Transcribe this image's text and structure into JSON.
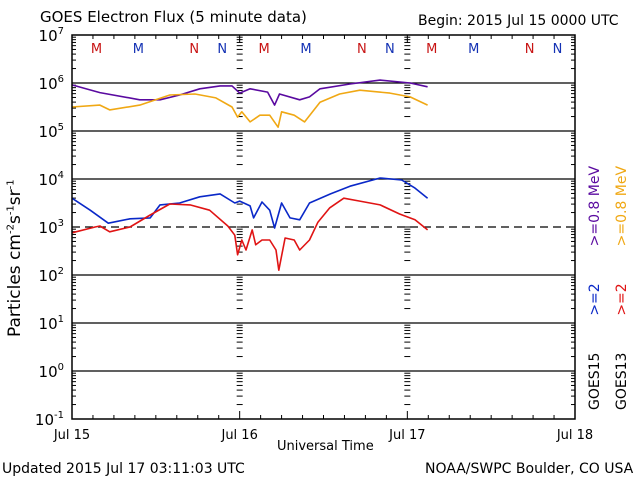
{
  "header": {
    "title": "GOES Electron Flux (5 minute data)",
    "begin": "Begin: 2015 Jul 15 0000 UTC"
  },
  "footer": {
    "updated": "Updated 2015 Jul 17 03:11:03 UTC",
    "credit": "NOAA/SWPC Boulder, CO USA"
  },
  "legend": {
    "goes15_label": "GOES15",
    "goes13_label": "GOES13",
    "goes15_ge2": ">=2",
    "goes13_ge2": ">=2",
    "goes15_ge08": ">=0.8  MeV",
    "goes13_ge08": ">=0.8  MeV"
  },
  "colors": {
    "goes15_ge08": "#5a0aa0",
    "goes13_ge08": "#f0a814",
    "goes15_ge2": "#0a28c8",
    "goes13_ge2": "#e01414",
    "marker_red": "#c81414",
    "marker_blue": "#1432b4"
  },
  "chart_data": {
    "type": "line",
    "title": "GOES Electron Flux (5 minute data)",
    "xlabel": "Universal Time",
    "ylabel": "Particles cm^-2 s^-1 sr^-1",
    "yscale": "log",
    "ylim_log10": [
      -1,
      7
    ],
    "xlim_hours": [
      0,
      72
    ],
    "x_unit": "hours since 2015 Jul 15 00:00 UTC",
    "x_ticks": [
      {
        "hour": 0,
        "label": "Jul 15"
      },
      {
        "hour": 24,
        "label": "Jul 16"
      },
      {
        "hour": 48,
        "label": "Jul 17"
      },
      {
        "hour": 72,
        "label": "Jul 18"
      }
    ],
    "y_ticks": [
      {
        "exp": 7,
        "label": "10",
        "sup": "7"
      },
      {
        "exp": 6,
        "label": "10",
        "sup": "6"
      },
      {
        "exp": 5,
        "label": "10",
        "sup": "5"
      },
      {
        "exp": 4,
        "label": "10",
        "sup": "4"
      },
      {
        "exp": 3,
        "label": "10",
        "sup": "3"
      },
      {
        "exp": 2,
        "label": "10",
        "sup": "2"
      },
      {
        "exp": 1,
        "label": "10",
        "sup": "1"
      },
      {
        "exp": 0,
        "label": "10",
        "sup": "0"
      },
      {
        "exp": -1,
        "label": "10",
        "sup": "-1"
      }
    ],
    "gridlines_log10": [
      6,
      5,
      4,
      2,
      1,
      0
    ],
    "threshold_log10": 3,
    "threshold_style": "dashed",
    "noon_midnight_markers": [
      {
        "hour": 3.5,
        "label": "M",
        "sat": "GOES13"
      },
      {
        "hour": 9.5,
        "label": "M",
        "sat": "GOES15"
      },
      {
        "hour": 17.5,
        "label": "N",
        "sat": "GOES13"
      },
      {
        "hour": 21.5,
        "label": "N",
        "sat": "GOES15"
      },
      {
        "hour": 27.5,
        "label": "M",
        "sat": "GOES13"
      },
      {
        "hour": 33.5,
        "label": "M",
        "sat": "GOES15"
      },
      {
        "hour": 41.5,
        "label": "N",
        "sat": "GOES13"
      },
      {
        "hour": 45.5,
        "label": "N",
        "sat": "GOES15"
      },
      {
        "hour": 51.5,
        "label": "M",
        "sat": "GOES13"
      },
      {
        "hour": 57.5,
        "label": "M",
        "sat": "GOES15"
      },
      {
        "hour": 65.5,
        "label": "N",
        "sat": "GOES13"
      },
      {
        "hour": 69.5,
        "label": "N",
        "sat": "GOES15"
      }
    ],
    "series": [
      {
        "name": "GOES15 >=0.8 MeV",
        "color_key": "goes15_ge08",
        "hours": [
          0,
          4,
          9.7,
          12.6,
          15.4,
          18.3,
          21.2,
          22.9,
          24.0,
          25.5,
          28.0,
          29.0,
          29.7,
          32.6,
          34.0,
          35.5,
          39.8,
          44.1,
          48.4,
          50.9
        ],
        "log10": [
          5.96,
          5.8,
          5.65,
          5.65,
          5.75,
          5.88,
          5.94,
          5.94,
          5.79,
          5.88,
          5.81,
          5.54,
          5.77,
          5.65,
          5.71,
          5.88,
          5.98,
          6.06,
          6.0,
          5.92
        ]
      },
      {
        "name": "GOES13 >=0.8 MeV",
        "color_key": "goes13_ge08",
        "hours": [
          0,
          4,
          5.4,
          9.7,
          14.0,
          17.6,
          20.6,
          22.9,
          23.7,
          24.3,
          25.5,
          26.9,
          28.3,
          29.5,
          30.0,
          31.8,
          33.3,
          35.5,
          38.3,
          41.2,
          45.5,
          48.4,
          50.9
        ],
        "log10": [
          5.5,
          5.54,
          5.44,
          5.54,
          5.75,
          5.77,
          5.69,
          5.5,
          5.29,
          5.4,
          5.19,
          5.33,
          5.33,
          5.08,
          5.4,
          5.33,
          5.19,
          5.6,
          5.77,
          5.85,
          5.79,
          5.71,
          5.54
        ]
      },
      {
        "name": "GOES15 >=2 MeV",
        "color_key": "goes15_ge2",
        "hours": [
          0,
          2.6,
          5.2,
          8.3,
          11.2,
          12.6,
          15.4,
          18.3,
          21.2,
          23.3,
          24.0,
          25.5,
          26.0,
          27.2,
          28.3,
          29.0,
          30.0,
          31.2,
          32.6,
          34.0,
          37.0,
          39.8,
          44.1,
          47.2,
          49.1,
          50.9
        ],
        "log10": [
          3.6,
          3.35,
          3.08,
          3.17,
          3.19,
          3.46,
          3.5,
          3.63,
          3.69,
          3.5,
          3.54,
          3.44,
          3.19,
          3.52,
          3.35,
          2.98,
          3.5,
          3.19,
          3.15,
          3.5,
          3.69,
          3.85,
          4.02,
          3.98,
          3.81,
          3.6
        ]
      },
      {
        "name": "GOES13 >=2 MeV",
        "color_key": "goes13_ge2",
        "hours": [
          0,
          3.3,
          4.0,
          5.4,
          8.3,
          11.2,
          14.0,
          16.9,
          19.7,
          22.3,
          23.3,
          23.7,
          24.3,
          24.9,
          25.8,
          26.3,
          27.2,
          28.3,
          29.2,
          29.6,
          30.5,
          31.8,
          32.6,
          34.0,
          35.2,
          36.9,
          38.9,
          41.2,
          44.1,
          46.9,
          49.1,
          50.9
        ],
        "log10": [
          2.88,
          3.0,
          3.02,
          2.9,
          3.0,
          3.25,
          3.48,
          3.46,
          3.35,
          3.02,
          2.83,
          2.42,
          2.73,
          2.52,
          2.94,
          2.63,
          2.73,
          2.73,
          2.52,
          2.1,
          2.77,
          2.73,
          2.52,
          2.73,
          3.1,
          3.4,
          3.6,
          3.54,
          3.46,
          3.27,
          3.15,
          2.94
        ]
      }
    ]
  }
}
